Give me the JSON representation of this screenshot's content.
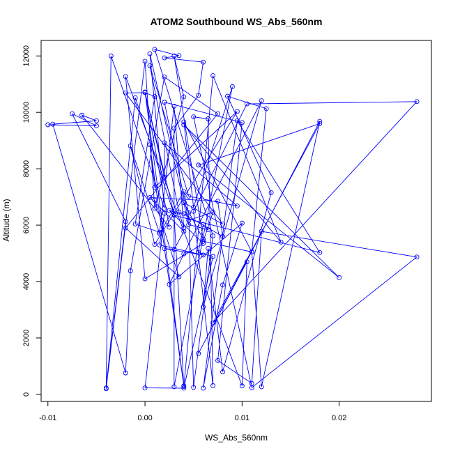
{
  "chart_data": {
    "type": "line",
    "title": "ATOM2 Southbound WS_Abs_560nm",
    "xlabel": "WS_Abs_560nm",
    "ylabel": "Altitude (m)",
    "xlim": [
      -0.0107,
      0.0295
    ],
    "ylim": [
      -250,
      12550
    ],
    "xticks": [
      -0.01,
      0.0,
      0.01,
      0.02
    ],
    "xtick_labels": [
      "-0.01",
      "0.00",
      "0.01",
      "0.02"
    ],
    "yticks": [
      0,
      2000,
      4000,
      6000,
      8000,
      10000,
      12000
    ],
    "ytick_labels": [
      "0",
      "2000",
      "4000",
      "6000",
      "8000",
      "10000",
      "12000"
    ],
    "grid": false,
    "series": [
      {
        "color": "#0000ff",
        "marker": "open-circle",
        "points": [
          [
            -0.01,
            9560
          ],
          [
            -0.005,
            9520
          ],
          [
            -0.0075,
            9950
          ],
          [
            -0.002,
            6130
          ],
          [
            -0.004,
            230
          ],
          [
            -0.001,
            10520
          ],
          [
            0.003,
            6380
          ],
          [
            0.0,
            10710
          ],
          [
            0.004,
            300
          ],
          [
            0.0005,
            8850
          ],
          [
            0.001,
            7340
          ],
          [
            0.0095,
            10030
          ],
          [
            0.001,
            5320
          ],
          [
            -0.0015,
            8810
          ],
          [
            0.0015,
            5700
          ],
          [
            0.004,
            7190
          ],
          [
            0.0045,
            6440
          ],
          [
            0.005,
            250
          ],
          [
            0.007,
            5620
          ],
          [
            0.001,
            12230
          ],
          [
            0.0035,
            12010
          ],
          [
            0.002,
            11930
          ],
          [
            0.006,
            11780
          ],
          [
            0.0055,
            10600
          ],
          [
            0.003,
            9440
          ],
          [
            0.003,
            270
          ],
          [
            0.009,
            10910
          ],
          [
            0.005,
            6630
          ],
          [
            0.004,
            9660
          ],
          [
            0.011,
            5050
          ],
          [
            0.0125,
            10130
          ],
          [
            0.0085,
            10570
          ],
          [
            0.013,
            7150
          ],
          [
            0.008,
            800
          ],
          [
            0.0065,
            5180
          ],
          [
            0.006,
            3100
          ],
          [
            0.012,
            10410
          ],
          [
            0.004,
            4980
          ],
          [
            0.0025,
            3900
          ],
          [
            0.01,
            6070
          ],
          [
            0.008,
            3880
          ],
          [
            0.006,
            220
          ],
          [
            0.0095,
            9700
          ],
          [
            0.018,
            5030
          ],
          [
            0.003,
            6350
          ],
          [
            0.004,
            280
          ],
          [
            0.007,
            11300
          ],
          [
            0.014,
            5400
          ],
          [
            0.004,
            9560
          ],
          [
            0.02,
            4140
          ],
          [
            0.0055,
            8130
          ],
          [
            0.018,
            9600
          ],
          [
            0.007,
            2540
          ],
          [
            0.028,
            10380
          ],
          [
            0.0105,
            10300
          ],
          [
            0.005,
            6490
          ],
          [
            0.007,
            310
          ],
          [
            0.0065,
            9770
          ],
          [
            0.005,
            9840
          ],
          [
            0.011,
            240
          ],
          [
            0.028,
            4870
          ],
          [
            0.012,
            5780
          ],
          [
            0.011,
            390
          ],
          [
            0.0075,
            1200
          ],
          [
            0.01,
            9640
          ],
          [
            0.002,
            10360
          ],
          [
            0.0045,
            6170
          ],
          [
            0.007,
            6460
          ],
          [
            0.006,
            5430
          ],
          [
            0.011,
            5050
          ],
          [
            0.012,
            270
          ],
          [
            0.018,
            9680
          ],
          [
            0.0055,
            1450
          ],
          [
            0.0105,
            4700
          ],
          [
            0.01,
            300
          ],
          [
            -0.002,
            11270
          ],
          [
            0.0,
            4100
          ],
          [
            0.006,
            5350
          ],
          [
            0.0025,
            6520
          ],
          [
            0.004,
            6400
          ],
          [
            0.008,
            5600
          ],
          [
            0.0075,
            6850
          ],
          [
            0.0005,
            6980
          ],
          [
            0.004,
            5780
          ],
          [
            0.003,
            5140
          ],
          [
            0.002,
            5170
          ],
          [
            0.006,
            4940
          ],
          [
            0.0015,
            5300
          ],
          [
            0.002,
            6420
          ],
          [
            0.0,
            230
          ],
          [
            0.004,
            220
          ],
          [
            0.007,
            4890
          ],
          [
            0.0055,
            5030
          ],
          [
            0.006,
            6020
          ],
          [
            0.0065,
            5840
          ],
          [
            0.0045,
            6020
          ],
          [
            0.0005,
            12080
          ],
          [
            0.002,
            6600
          ],
          [
            -0.0035,
            12000
          ],
          [
            -0.004,
            200
          ],
          [
            0.0,
            11810
          ],
          [
            0.001,
            6600
          ],
          [
            0.004,
            10550
          ],
          [
            0.003,
            12000
          ],
          [
            0.006,
            5500
          ],
          [
            0.004,
            6800
          ],
          [
            0.008,
            6040
          ],
          [
            -0.002,
            10690
          ],
          [
            0.0,
            10700
          ],
          [
            0.001,
            10560
          ],
          [
            -0.001,
            6040
          ],
          [
            0.0015,
            5750
          ],
          [
            0.003,
            10220
          ],
          [
            0.004,
            5900
          ],
          [
            0.0035,
            6470
          ],
          [
            0.0005,
            11660
          ],
          [
            0.0045,
            7030
          ],
          [
            0.0095,
            6680
          ],
          [
            0.002,
            8920
          ],
          [
            0.002,
            7700
          ],
          [
            0.0,
            10720
          ],
          [
            0.0025,
            5930
          ],
          [
            -0.0065,
            9900
          ],
          [
            -0.005,
            9700
          ],
          [
            -0.0095,
            9580
          ],
          [
            -0.002,
            760
          ],
          [
            -0.0015,
            4380
          ],
          [
            0.002,
            11250
          ],
          [
            0.0075,
            9950
          ],
          [
            -0.002,
            5900
          ],
          [
            0.0035,
            4170
          ],
          [
            0.001,
            6890
          ]
        ]
      }
    ]
  }
}
